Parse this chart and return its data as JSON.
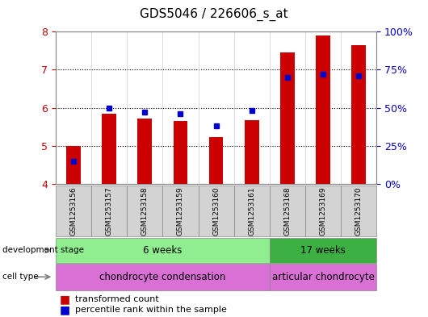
{
  "title": "GDS5046 / 226606_s_at",
  "samples": [
    "GSM1253156",
    "GSM1253157",
    "GSM1253158",
    "GSM1253159",
    "GSM1253160",
    "GSM1253161",
    "GSM1253168",
    "GSM1253169",
    "GSM1253170"
  ],
  "transformed_count": [
    5.0,
    5.85,
    5.72,
    5.65,
    5.22,
    5.68,
    7.45,
    7.9,
    7.65
  ],
  "percentile_rank": [
    15,
    50,
    47,
    46,
    38,
    48,
    70,
    72,
    71
  ],
  "ylim_left": [
    4,
    8
  ],
  "ylim_right": [
    0,
    100
  ],
  "yticks_left": [
    4,
    5,
    6,
    7,
    8
  ],
  "yticks_right": [
    0,
    25,
    50,
    75,
    100
  ],
  "ytick_labels_right": [
    "0%",
    "25%",
    "50%",
    "75%",
    "100%"
  ],
  "bar_color": "#cc0000",
  "dot_color": "#0000cc",
  "bar_bottom": 4.0,
  "dev_stage_groups": [
    {
      "label": "6 weeks",
      "start": 0,
      "end": 6,
      "color": "#90ee90"
    },
    {
      "label": "17 weeks",
      "start": 6,
      "end": 9,
      "color": "#3cb043"
    }
  ],
  "cell_type_groups": [
    {
      "label": "chondrocyte condensation",
      "start": 0,
      "end": 6,
      "color": "#da70d6"
    },
    {
      "label": "articular chondrocyte",
      "start": 6,
      "end": 9,
      "color": "#da70d6"
    }
  ],
  "legend_bar_label": "transformed count",
  "legend_dot_label": "percentile rank within the sample",
  "plot_bg_color": "#ffffff",
  "axis_label_color_left": "#cc0000",
  "axis_label_color_right": "#0000cc"
}
